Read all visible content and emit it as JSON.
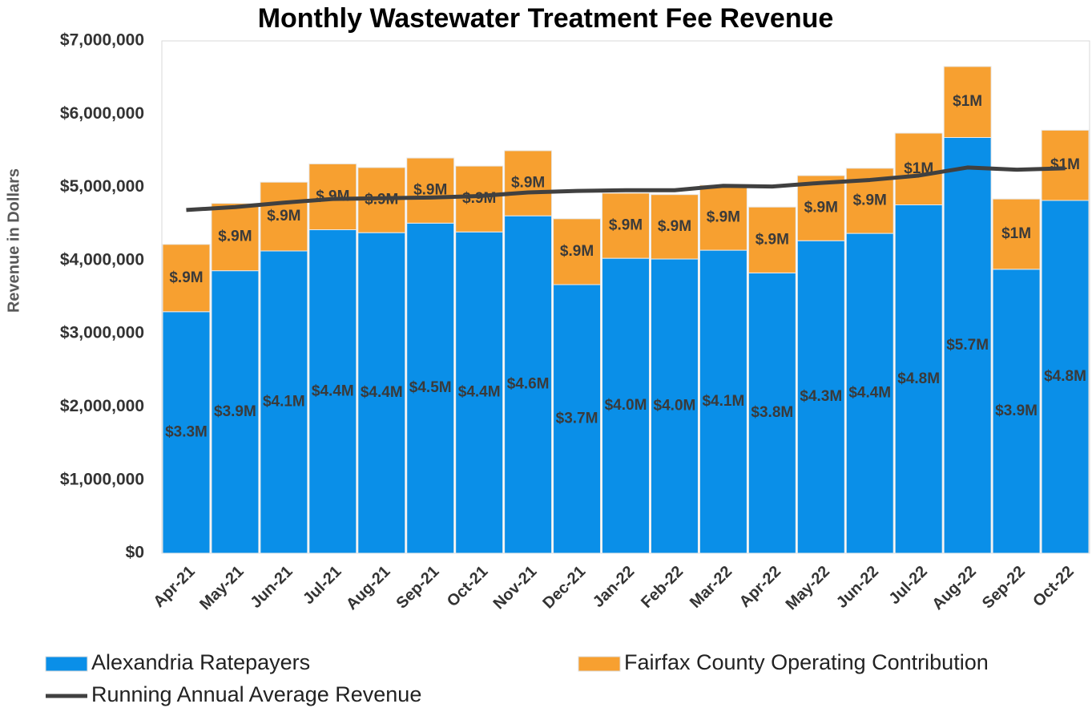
{
  "chart_data": {
    "type": "bar",
    "stacked": true,
    "title": "Monthly Wastewater Treatment Fee Revenue",
    "y_label": "Revenue in Dollars",
    "categories": [
      "Apr-21",
      "May-21",
      "Jun-21",
      "Jul-21",
      "Aug-21",
      "Sep-21",
      "Oct-21",
      "Nov-21",
      "Dec-21",
      "Jan-22",
      "Feb-22",
      "Mar-22",
      "Apr-22",
      "May-22",
      "Jun-22",
      "Jul-22",
      "Aug-22",
      "Sep-22",
      "Oct-22"
    ],
    "series": [
      {
        "name": "Alexandria Ratepayers",
        "color": "#0a8fe8",
        "values": [
          3300000,
          3860000,
          4130000,
          4420000,
          4380000,
          4510000,
          4390000,
          4610000,
          3670000,
          4030000,
          4020000,
          4140000,
          3830000,
          4270000,
          4370000,
          4760000,
          5680000,
          3880000,
          4820000
        ],
        "value_labels": [
          "$3.3M",
          "$3.9M",
          "$4.1M",
          "$4.4M",
          "$4.4M",
          "$4.5M",
          "$4.4M",
          "$4.6M",
          "$3.7M",
          "$4.0M",
          "$4.0M",
          "$4.1M",
          "$3.8M",
          "$4.3M",
          "$4.4M",
          "$4.8M",
          "$5.7M",
          "$3.9M",
          "$4.8M"
        ]
      },
      {
        "name": "Fairfax County Operating Contribution",
        "color": "#f7a030",
        "values": [
          920000,
          920000,
          940000,
          900000,
          890000,
          890000,
          900000,
          890000,
          900000,
          890000,
          880000,
          890000,
          900000,
          890000,
          890000,
          980000,
          970000,
          960000,
          960000
        ],
        "value_labels": [
          "$.9M",
          "$.9M",
          "$.9M",
          "$.9M",
          "$.9M",
          "$.9M",
          "$.9M",
          "$.9M",
          "$.9M",
          "$.9M",
          "$.9M",
          "$.9M",
          "$.9M",
          "$.9M",
          "$.9M",
          "$1M",
          "$1M",
          "$1M",
          "$1M"
        ]
      },
      {
        "name": "Running Annual Average Revenue",
        "color": "#404040",
        "type": "line",
        "values": [
          4690000,
          4730000,
          4790000,
          4840000,
          4850000,
          4860000,
          4880000,
          4930000,
          4950000,
          4960000,
          4960000,
          5020000,
          5010000,
          5060000,
          5100000,
          5160000,
          5270000,
          5240000,
          5260000
        ]
      }
    ],
    "ylim": [
      0,
      7000000
    ],
    "yticks": [
      {
        "value": 0,
        "label": "$0"
      },
      {
        "value": 1000000,
        "label": "$1,000,000"
      },
      {
        "value": 2000000,
        "label": "$2,000,000"
      },
      {
        "value": 3000000,
        "label": "$3,000,000"
      },
      {
        "value": 4000000,
        "label": "$4,000,000"
      },
      {
        "value": 5000000,
        "label": "$5,000,000"
      },
      {
        "value": 6000000,
        "label": "$6,000,000"
      },
      {
        "value": 7000000,
        "label": "$7,000,000"
      }
    ],
    "grid": false
  }
}
